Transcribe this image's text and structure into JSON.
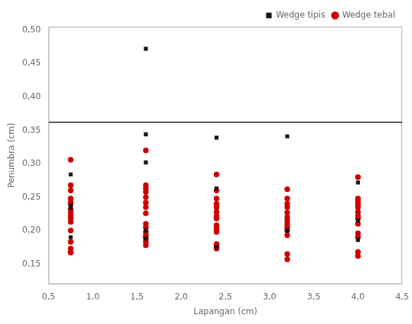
{
  "chart_data": {
    "type": "scatter",
    "xlabel": "Lapangan (cm)",
    "ylabel": "Penumbra (cm)",
    "xlim": [
      0.5,
      4.5
    ],
    "ylim": [
      0.12,
      0.505
    ],
    "xticks": [
      {
        "value": 0.5,
        "label": "0,5"
      },
      {
        "value": 1.0,
        "label": "1,0"
      },
      {
        "value": 1.5,
        "label": "1,5"
      },
      {
        "value": 2.0,
        "label": "2,0"
      },
      {
        "value": 2.5,
        "label": "2,5"
      },
      {
        "value": 3.0,
        "label": "3,0"
      },
      {
        "value": 3.5,
        "label": "3,5"
      },
      {
        "value": 4.0,
        "label": "4,0"
      },
      {
        "value": 4.5,
        "label": "4,5"
      }
    ],
    "yticks": [
      {
        "value": 0.15,
        "label": "0,15"
      },
      {
        "value": 0.2,
        "label": "0,20"
      },
      {
        "value": 0.25,
        "label": "0,25"
      },
      {
        "value": 0.3,
        "label": "0,30"
      },
      {
        "value": 0.35,
        "label": "0,35"
      },
      {
        "value": 0.4,
        "label": "0,40"
      },
      {
        "value": 0.45,
        "label": "0,45"
      },
      {
        "value": 0.5,
        "label": "0,50"
      }
    ],
    "grid": false,
    "legend": "upper right",
    "hline": {
      "value": 0.362,
      "color": "#1a1a1a"
    },
    "series": [
      {
        "name": "Wedge tipis",
        "color": "#1a1a1a",
        "marker": "square",
        "x": [
          0.75,
          0.75,
          0.75,
          0.75,
          1.6,
          1.6,
          1.6,
          1.6,
          1.6,
          2.4,
          2.4,
          2.4,
          3.2,
          3.2,
          4.0,
          4.0,
          4.0
        ],
        "values": [
          0.284,
          0.237,
          0.234,
          0.19,
          0.472,
          0.344,
          0.302,
          0.2,
          0.188,
          0.339,
          0.263,
          0.175,
          0.341,
          0.2,
          0.272,
          0.215,
          0.186
        ]
      },
      {
        "name": "Wedge tebal",
        "color": "#cc0000",
        "marker": "circle",
        "x": [
          0.75,
          0.75,
          0.75,
          0.75,
          0.75,
          0.75,
          0.75,
          0.75,
          0.75,
          0.75,
          0.75,
          0.75,
          0.75,
          0.75,
          0.75,
          0.75,
          1.6,
          1.6,
          1.6,
          1.6,
          1.6,
          1.6,
          1.6,
          1.6,
          1.6,
          1.6,
          1.6,
          1.6,
          1.6,
          1.6,
          1.6,
          1.6,
          2.4,
          2.4,
          2.4,
          2.4,
          2.4,
          2.4,
          2.4,
          2.4,
          2.4,
          2.4,
          2.4,
          2.4,
          2.4,
          2.4,
          3.2,
          3.2,
          3.2,
          3.2,
          3.2,
          3.2,
          3.2,
          3.2,
          3.2,
          3.2,
          3.2,
          3.2,
          3.2,
          4.0,
          4.0,
          4.0,
          4.0,
          4.0,
          4.0,
          4.0,
          4.0,
          4.0,
          4.0,
          4.0,
          4.0,
          4.0
        ],
        "values": [
          0.306,
          0.268,
          0.26,
          0.248,
          0.242,
          0.24,
          0.232,
          0.227,
          0.222,
          0.218,
          0.213,
          0.2,
          0.183,
          0.173,
          0.168,
          0.167,
          0.32,
          0.268,
          0.263,
          0.258,
          0.25,
          0.242,
          0.235,
          0.226,
          0.21,
          0.205,
          0.198,
          0.193,
          0.19,
          0.188,
          0.183,
          0.178,
          0.284,
          0.26,
          0.248,
          0.24,
          0.235,
          0.228,
          0.222,
          0.218,
          0.208,
          0.203,
          0.198,
          0.18,
          0.176,
          0.173,
          0.262,
          0.248,
          0.24,
          0.235,
          0.227,
          0.22,
          0.215,
          0.21,
          0.205,
          0.2,
          0.193,
          0.165,
          0.157,
          0.28,
          0.248,
          0.244,
          0.24,
          0.235,
          0.228,
          0.222,
          0.218,
          0.21,
          0.196,
          0.19,
          0.168,
          0.162
        ]
      }
    ]
  }
}
